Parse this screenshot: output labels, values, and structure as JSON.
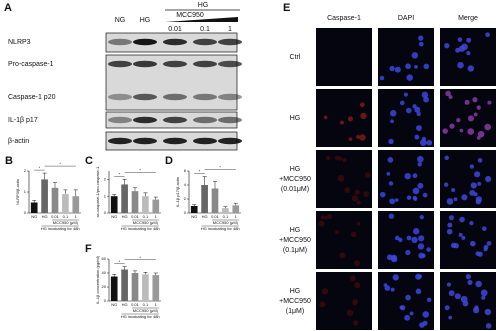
{
  "panel_a": {
    "letter": "A",
    "header": {
      "ng": "NG",
      "hg": "HG",
      "hg_group": "HG",
      "drug": "MCC950",
      "doses": [
        "0.01",
        "0.1",
        "1"
      ]
    },
    "blots": [
      "NLRP3",
      "Pro-caspase-1",
      "Caspase-1 p20",
      "IL-1β p17",
      "β-actin"
    ]
  },
  "chart_data": [
    {
      "type": "bar",
      "letter": "B",
      "y_label": "NLRP3/β-actin",
      "categories": [
        "NG",
        "HG",
        "0.01",
        "0.1",
        "1"
      ],
      "values": [
        0.5,
        1.6,
        1.2,
        0.9,
        0.8
      ],
      "errors": [
        0.1,
        0.3,
        0.25,
        0.2,
        0.3
      ],
      "colors": [
        "#111111",
        "#666666",
        "#888888",
        "#bbbbbb",
        "#999999"
      ],
      "ylim": [
        0,
        2
      ],
      "yticks": [
        0,
        1,
        2
      ],
      "group_label": "MCC950 (μM)",
      "condition_label": "HG incubating for 48h",
      "significance": [
        "*",
        "*"
      ]
    },
    {
      "type": "bar",
      "letter": "C",
      "y_label": "ac-caspase-1/pro-caspase-1",
      "categories": [
        "NG",
        "HG",
        "0.01",
        "0.1",
        "1"
      ],
      "values": [
        1.0,
        1.7,
        1.3,
        1.0,
        0.8
      ],
      "errors": [
        0.1,
        0.3,
        0.2,
        0.2,
        0.15
      ],
      "colors": [
        "#111111",
        "#666666",
        "#888888",
        "#bbbbbb",
        "#999999"
      ],
      "ylim": [
        0,
        2.5
      ],
      "yticks": [
        0,
        1,
        2
      ],
      "group_label": "MCC950 (μM)",
      "condition_label": "HG incubating for 48h",
      "significance": [
        "*",
        "*"
      ]
    },
    {
      "type": "bar",
      "letter": "D",
      "y_label": "IL-1β p17/β-actin",
      "categories": [
        "NG",
        "HG",
        "0.01",
        "0.1",
        "1"
      ],
      "values": [
        1.0,
        4.0,
        3.5,
        0.7,
        1.1
      ],
      "errors": [
        0.2,
        1.2,
        1.0,
        0.2,
        0.3
      ],
      "colors": [
        "#111111",
        "#666666",
        "#888888",
        "#bbbbbb",
        "#999999"
      ],
      "ylim": [
        0,
        6
      ],
      "yticks": [
        0,
        2,
        4,
        6
      ],
      "group_label": "MCC950 (μM)",
      "condition_label": "HG incubating for 48h",
      "significance": [
        "*",
        "*"
      ]
    },
    {
      "type": "bar",
      "letter": "F",
      "y_label": "IL-1β concentration (pg/ml)",
      "categories": [
        "NG",
        "HG",
        "0.01",
        "0.1",
        "1"
      ],
      "values": [
        35,
        45,
        40,
        38,
        37
      ],
      "errors": [
        3,
        4,
        3,
        3,
        3
      ],
      "colors": [
        "#111111",
        "#666666",
        "#888888",
        "#bbbbbb",
        "#999999"
      ],
      "ylim": [
        0,
        60
      ],
      "yticks": [
        0,
        20,
        40,
        60
      ],
      "group_label": "MCC950 (μM)",
      "condition_label": "HG incubating for 48h",
      "significance": [
        "*",
        "*"
      ]
    }
  ],
  "panel_e": {
    "letter": "E",
    "columns": [
      "Caspase-1",
      "DAPI",
      "Merge"
    ],
    "rows": [
      [
        "Ctrl"
      ],
      [
        "HG"
      ],
      [
        "HG",
        "+MCC950",
        "(0.01μM)"
      ],
      [
        "HG",
        "+MCC950",
        "(0.1μM)"
      ],
      [
        "HG",
        "+MCC950",
        "(1μM)"
      ]
    ]
  }
}
